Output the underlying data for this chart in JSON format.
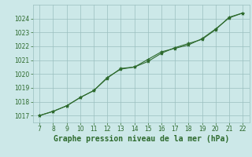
{
  "x": [
    7,
    8,
    9,
    10,
    11,
    12,
    13,
    14,
    15,
    16,
    17,
    18,
    19,
    20,
    21,
    22
  ],
  "line1": [
    1017.0,
    1017.3,
    1017.7,
    1018.3,
    1018.8,
    1019.7,
    1020.4,
    1020.5,
    1020.9,
    1021.5,
    1021.9,
    1022.2,
    1022.5,
    1023.2,
    1024.1,
    1024.4
  ],
  "line2": [
    1017.0,
    1017.3,
    1017.7,
    1018.3,
    1018.8,
    1019.75,
    1020.35,
    1020.5,
    1021.05,
    1021.6,
    1021.85,
    1022.1,
    1022.55,
    1023.25,
    1024.05,
    1024.4
  ],
  "xlabel": "Graphe pression niveau de la mer (hPa)",
  "ylim": [
    1016.5,
    1025.0
  ],
  "xlim": [
    6.5,
    22.5
  ],
  "yticks": [
    1017,
    1018,
    1019,
    1020,
    1021,
    1022,
    1023,
    1024
  ],
  "xticks": [
    7,
    8,
    9,
    10,
    11,
    12,
    13,
    14,
    15,
    16,
    17,
    18,
    19,
    20,
    21,
    22
  ],
  "line_color": "#2d6a2d",
  "bg_color": "#cce8e8",
  "grid_color": "#9abfbf",
  "xlabel_color": "#2d6a2d",
  "tick_color": "#2d6a2d",
  "xlabel_fontsize": 7.0,
  "tick_fontsize": 5.5
}
